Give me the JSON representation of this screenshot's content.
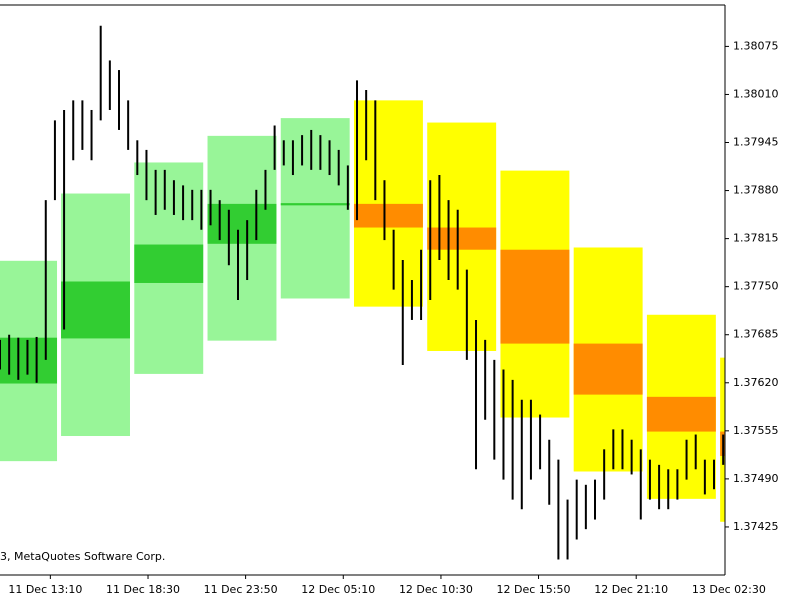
{
  "chart_data": {
    "type": "price-bars",
    "watermark": "3, MetaQuotes Software Corp.",
    "xlim": [
      0,
      79.2
    ],
    "ylim": [
      1.3736,
      1.38131
    ],
    "xticks": [
      {
        "value": 5.5,
        "label": "11 Dec 13:10"
      },
      {
        "value": 16.17,
        "label": "11 Dec 18:30"
      },
      {
        "value": 26.83,
        "label": "11 Dec 23:50"
      },
      {
        "value": 37.5,
        "label": "12 Dec 05:10"
      },
      {
        "value": 48.17,
        "label": "12 Dec 10:30"
      },
      {
        "value": 58.83,
        "label": "12 Dec 15:50"
      },
      {
        "value": 69.5,
        "label": "12 Dec 21:10"
      },
      {
        "value": 80.17,
        "label": "13 Dec 02:30"
      }
    ],
    "yticks": [
      {
        "value": 1.38075,
        "label": "1.38075"
      },
      {
        "value": 1.3801,
        "label": "1.38010"
      },
      {
        "value": 1.37945,
        "label": "1.37945"
      },
      {
        "value": 1.3788,
        "label": "1.37880"
      },
      {
        "value": 1.37815,
        "label": "1.37815"
      },
      {
        "value": 1.3775,
        "label": "1.37750"
      },
      {
        "value": 1.37685,
        "label": "1.37685"
      },
      {
        "value": 1.3762,
        "label": "1.37620"
      },
      {
        "value": 1.37555,
        "label": "1.37555"
      },
      {
        "value": 1.3749,
        "label": "1.37490"
      },
      {
        "value": 1.37425,
        "label": "1.37425"
      }
    ],
    "bar_color": "#000000",
    "boxes": [
      {
        "start": -1.33,
        "end": 6.23,
        "high": 1.37785,
        "low": 1.37514,
        "band_high": 1.37681,
        "band_low": 1.37619,
        "color": "#98f598",
        "band_color": "#32cd32"
      },
      {
        "start": 6.67,
        "end": 14.2,
        "high": 1.37876,
        "low": 1.37548,
        "band_high": 1.37757,
        "band_low": 1.3768,
        "color": "#98f598",
        "band_color": "#32cd32"
      },
      {
        "start": 14.67,
        "end": 22.2,
        "high": 1.37918,
        "low": 1.37632,
        "band_high": 1.37807,
        "band_low": 1.37755,
        "color": "#98f598",
        "band_color": "#32cd32"
      },
      {
        "start": 22.67,
        "end": 30.2,
        "high": 1.37954,
        "low": 1.37677,
        "band_high": 1.37862,
        "band_low": 1.37808,
        "color": "#98f598",
        "band_color": "#32cd32"
      },
      {
        "start": 30.67,
        "end": 38.2,
        "high": 1.37978,
        "low": 1.37734,
        "band_high": 1.37863,
        "band_low": 1.3786,
        "color": "#98f598",
        "band_color": "#32cd32"
      },
      {
        "start": 38.67,
        "end": 46.2,
        "high": 1.38002,
        "low": 1.37723,
        "band_high": 1.37862,
        "band_low": 1.3783,
        "color": "#ffff00",
        "band_color": "#ff8c00"
      },
      {
        "start": 46.67,
        "end": 54.2,
        "high": 1.37972,
        "low": 1.37663,
        "band_high": 1.3783,
        "band_low": 1.378,
        "color": "#ffff00",
        "band_color": "#ff8c00"
      },
      {
        "start": 54.67,
        "end": 62.2,
        "high": 1.37907,
        "low": 1.37573,
        "band_high": 1.378,
        "band_low": 1.37673,
        "color": "#ffff00",
        "band_color": "#ff8c00"
      },
      {
        "start": 62.67,
        "end": 70.2,
        "high": 1.37803,
        "low": 1.375,
        "band_high": 1.37673,
        "band_low": 1.37604,
        "color": "#ffff00",
        "band_color": "#ff8c00"
      },
      {
        "start": 70.67,
        "end": 78.2,
        "high": 1.37712,
        "low": 1.37463,
        "band_high": 1.37601,
        "band_low": 1.37554,
        "color": "#ffff00",
        "band_color": "#ff8c00"
      },
      {
        "start": 78.67,
        "end": 86.2,
        "high": 1.37654,
        "low": 1.37432,
        "band_high": 1.37554,
        "band_low": 1.37521,
        "color": "#ffff00",
        "band_color": "#ff8c00"
      }
    ],
    "high": [
      1.37678,
      1.37685,
      1.37681,
      1.37678,
      1.37682,
      1.37867,
      1.37975,
      1.37989,
      1.38002,
      1.38002,
      1.37989,
      1.38103,
      1.38056,
      1.38043,
      1.38002,
      1.37948,
      1.37935,
      1.37908,
      1.37908,
      1.37894,
      1.37887,
      1.37881,
      1.37881,
      1.37881,
      1.37867,
      1.37854,
      1.37827,
      1.3784,
      1.37881,
      1.37908,
      1.37968,
      1.37948,
      1.37948,
      1.37955,
      1.37962,
      1.37955,
      1.37948,
      1.37935,
      1.37914,
      1.38029,
      1.38016,
      1.38002,
      1.37894,
      1.37827,
      1.37786,
      1.37759,
      1.378,
      1.37894,
      1.37901,
      1.37867,
      1.37854,
      1.37773,
      1.37705,
      1.37678,
      1.37651,
      1.37638,
      1.37624,
      1.37597,
      1.37597,
      1.37577,
      1.37543,
      1.37516,
      1.37462,
      1.37489,
      1.37482,
      1.37489,
      1.3753,
      1.37557,
      1.37557,
      1.37543,
      1.3753,
      1.37516,
      1.37509,
      1.37503,
      1.37503,
      1.37543,
      1.3755,
      1.37516,
      1.37516,
      1.3755
    ],
    "low": [
      1.37638,
      1.37631,
      1.37624,
      1.37631,
      1.3762,
      1.37651,
      1.37867,
      1.37692,
      1.37921,
      1.37935,
      1.37921,
      1.37975,
      1.37989,
      1.37962,
      1.37935,
      1.37901,
      1.37867,
      1.37847,
      1.37854,
      1.37847,
      1.3784,
      1.3784,
      1.37827,
      1.37833,
      1.37813,
      1.37779,
      1.37732,
      1.37759,
      1.37813,
      1.37854,
      1.37908,
      1.37914,
      1.37901,
      1.37914,
      1.37908,
      1.37908,
      1.37901,
      1.37887,
      1.37854,
      1.3784,
      1.37921,
      1.37867,
      1.37813,
      1.37746,
      1.37644,
      1.37705,
      1.37705,
      1.37732,
      1.37786,
      1.37759,
      1.37746,
      1.37651,
      1.37503,
      1.3757,
      1.37516,
      1.37489,
      1.37462,
      1.37449,
      1.37489,
      1.37503,
      1.37455,
      1.37381,
      1.37381,
      1.37408,
      1.37422,
      1.37435,
      1.37462,
      1.37503,
      1.37503,
      1.37496,
      1.37435,
      1.37462,
      1.37449,
      1.37449,
      1.37462,
      1.37489,
      1.37503,
      1.37469,
      1.37476,
      1.37509
    ]
  }
}
